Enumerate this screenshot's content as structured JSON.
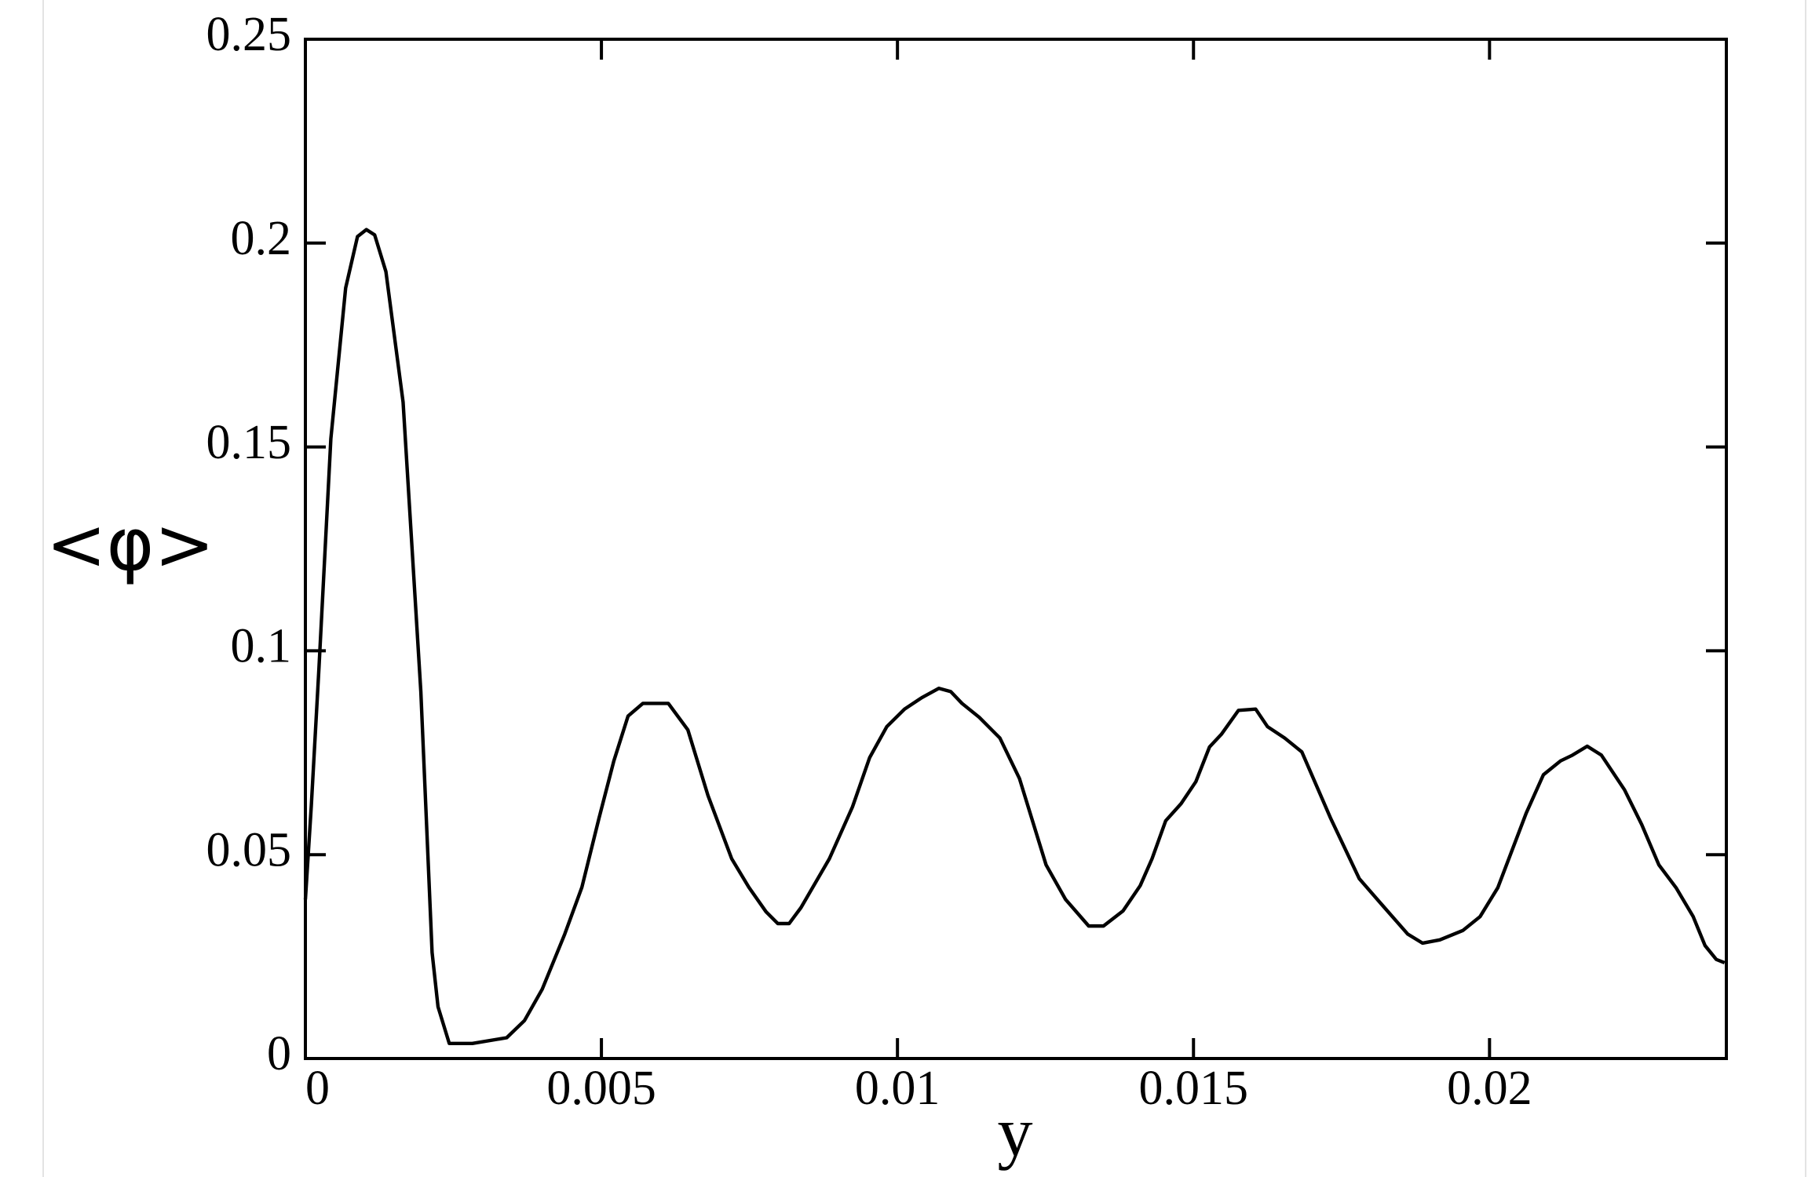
{
  "chart_data": {
    "type": "line",
    "x_label": "y",
    "y_label": "<φ>",
    "x": [
      0,
      0.0001,
      0.00023,
      0.00043,
      0.00068,
      0.00088,
      0.00103,
      0.00117,
      0.00136,
      0.00165,
      0.00195,
      0.00214,
      0.00224,
      0.00243,
      0.00282,
      0.0034,
      0.0037,
      0.004,
      0.00438,
      0.00467,
      0.00496,
      0.00521,
      0.00545,
      0.0057,
      0.00613,
      0.00646,
      0.0068,
      0.0072,
      0.00749,
      0.00778,
      0.00798,
      0.00817,
      0.00837,
      0.00885,
      0.00924,
      0.00953,
      0.00982,
      0.01012,
      0.01041,
      0.0107,
      0.0109,
      0.01109,
      0.01138,
      0.01173,
      0.01206,
      0.01251,
      0.01284,
      0.01323,
      0.01348,
      0.01381,
      0.0141,
      0.0143,
      0.01453,
      0.01479,
      0.01504,
      0.01527,
      0.01547,
      0.01576,
      0.01605,
      0.01625,
      0.01654,
      0.01683,
      0.01732,
      0.0178,
      0.01819,
      0.01862,
      0.01887,
      0.01916,
      0.01955,
      0.01984,
      0.02014,
      0.02062,
      0.02091,
      0.0212,
      0.0214,
      0.02165,
      0.02189,
      0.02228,
      0.02257,
      0.02286,
      0.02315,
      0.02344,
      0.02364,
      0.02383,
      0.02397
    ],
    "series": [
      {
        "color": "#000000",
        "values": [
          0.039,
          0.062,
          0.096,
          0.152,
          0.189,
          0.2016,
          0.2033,
          0.202,
          0.193,
          0.161,
          0.09,
          0.026,
          0.0127,
          0.0037,
          0.0037,
          0.0051,
          0.0093,
          0.017,
          0.0305,
          0.042,
          0.059,
          0.073,
          0.084,
          0.0871,
          0.0871,
          0.0806,
          0.0645,
          0.049,
          0.042,
          0.036,
          0.0331,
          0.0331,
          0.037,
          0.049,
          0.0617,
          0.0738,
          0.0814,
          0.0857,
          0.0885,
          0.0908,
          0.09,
          0.0871,
          0.0837,
          0.0786,
          0.0687,
          0.0475,
          0.039,
          0.0325,
          0.0325,
          0.0362,
          0.0424,
          0.049,
          0.0583,
          0.0625,
          0.0679,
          0.0764,
          0.0795,
          0.0854,
          0.0857,
          0.0814,
          0.0786,
          0.0752,
          0.0588,
          0.0441,
          0.0376,
          0.0305,
          0.0283,
          0.0291,
          0.0314,
          0.0348,
          0.0419,
          0.0602,
          0.0696,
          0.073,
          0.0744,
          0.0766,
          0.0744,
          0.0659,
          0.0574,
          0.0475,
          0.0419,
          0.0348,
          0.0277,
          0.0243,
          0.0235
        ]
      }
    ],
    "xlim": [
      0,
      0.024
    ],
    "xticks": [
      0,
      0.005,
      0.01,
      0.015,
      0.02
    ],
    "ylim": [
      0,
      0.25
    ],
    "yticks": [
      0,
      0.05,
      0.1,
      0.15,
      0.2,
      0.25
    ]
  }
}
